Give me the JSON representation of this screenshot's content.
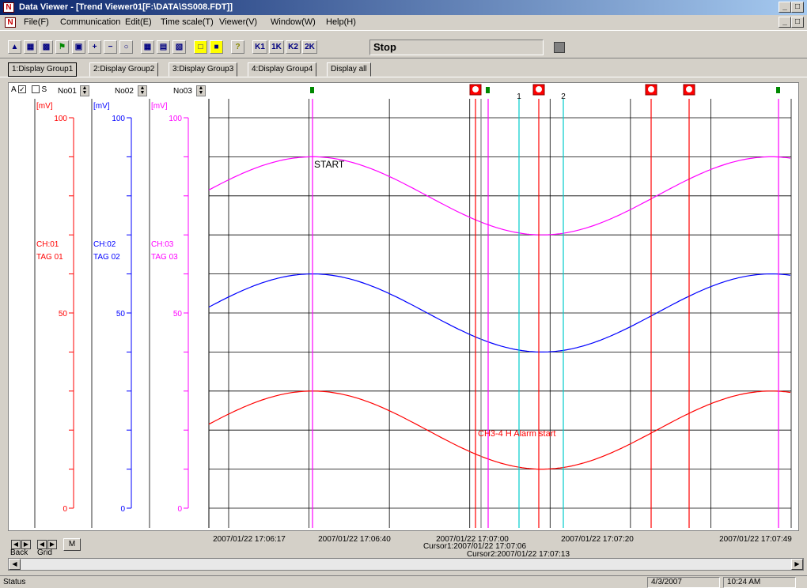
{
  "window": {
    "title": "Data Viewer - [Trend Viewer01[F:\\DATA\\SS008.FDT]]"
  },
  "menu": [
    "File(F)",
    "Communication",
    "Edit(E)",
    "Time scale(T)",
    "Viewer(V)",
    "Window(W)",
    "Help(H)"
  ],
  "toolbar": {
    "status": "Stop",
    "buttons": [
      "open-icon",
      "print-preview-icon",
      "print-icon",
      "mark-icon",
      "flag-icon",
      "zoom-box-icon",
      "zoom-in-icon",
      "zoom-out-icon",
      "zoom-reset-icon",
      "grid-icon",
      "list-icon",
      "table-icon",
      "digital-icon",
      "numeric-icon",
      "help-icon",
      "cursor1-back-icon",
      "cursor1-forward-icon",
      "cursor2-back-icon",
      "cursor2-forward-icon"
    ],
    "button_labels": [
      "K1",
      "1K",
      "K2",
      "2K"
    ]
  },
  "tabs": [
    "1:Display Group1",
    "2:Display Group2",
    "3:Display Group3",
    "4:Display Group4",
    "Display all"
  ],
  "controls": {
    "a_label": "A",
    "a_checked": true,
    "s_label": "S",
    "s_checked": false,
    "scales": [
      "No01",
      "No02",
      "No03"
    ]
  },
  "channels": [
    {
      "unit": "[mV]",
      "ch": "CH:01",
      "tag": "TAG 01",
      "color": "#ff0000",
      "ticks": [
        "100",
        "50",
        "0"
      ]
    },
    {
      "unit": "[mV]",
      "ch": "CH:02",
      "tag": "TAG 02",
      "color": "#0000ff",
      "ticks": [
        "100",
        "50",
        "0"
      ]
    },
    {
      "unit": "[mV]",
      "ch": "CH:03",
      "tag": "TAG 03",
      "color": "#ff00ff",
      "ticks": [
        "100",
        "50",
        "0"
      ]
    }
  ],
  "chart_data": {
    "type": "line",
    "x": [
      "2007/01/22 17:06:17",
      "2007/01/22 17:06:40",
      "2007/01/22 17:07:00",
      "2007/01/22 17:07:20",
      "2007/01/22 17:07:49"
    ],
    "ylim": [
      0,
      100
    ],
    "series": [
      {
        "name": "TAG 01",
        "color": "#ff0000",
        "min": 10,
        "max": 30
      },
      {
        "name": "TAG 02",
        "color": "#0000ff",
        "min": 40,
        "max": 60
      },
      {
        "name": "TAG 03",
        "color": "#ff00ff",
        "min": 70,
        "max": 90
      }
    ],
    "annotations": [
      "START",
      "CH3-4 H Alarm start"
    ],
    "cursor_labels": [
      "1",
      "2"
    ],
    "cursor1": "Cursor1:2007/01/22 17:07:06",
    "cursor2": "Cursor2:2007/01/22 17:07:13"
  },
  "nav": {
    "back": "Back",
    "grid": "Grid",
    "m": "M"
  },
  "status": {
    "text": "Status",
    "date": "4/3/2007",
    "time": "10:24 AM"
  }
}
